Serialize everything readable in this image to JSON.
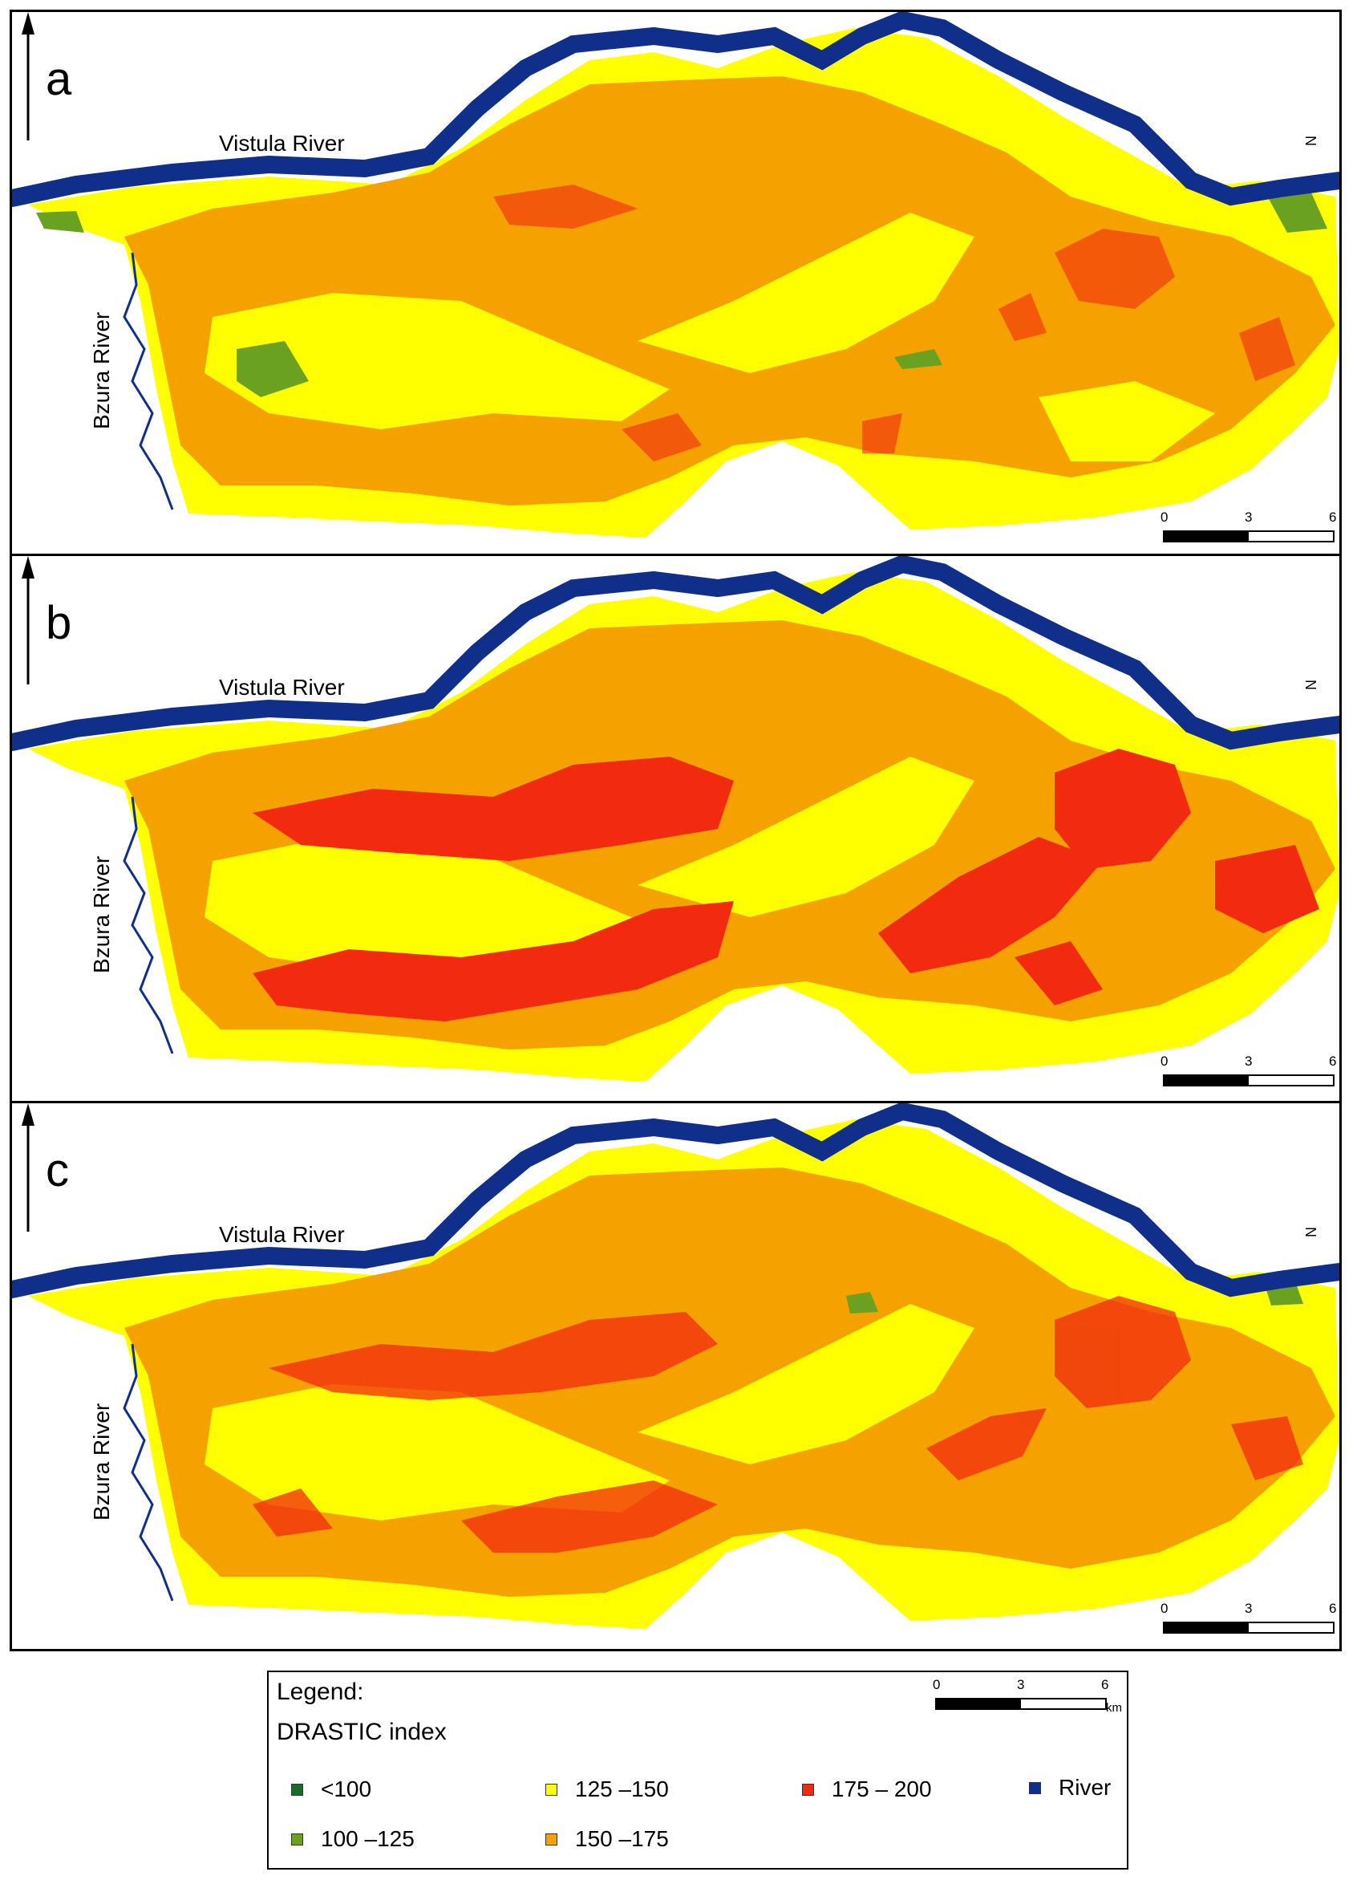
{
  "panels": [
    {
      "letter": "a",
      "vistula_label": "Vistula River",
      "bzura_label": "Bzura River",
      "north_label": "N",
      "scale": {
        "ticks": [
          "0",
          "3",
          "6"
        ],
        "unit": "km"
      }
    },
    {
      "letter": "b",
      "vistula_label": "Vistula River",
      "bzura_label": "Bzura River",
      "north_label": "N",
      "scale": {
        "ticks": [
          "0",
          "3",
          "6"
        ],
        "unit": "km"
      }
    },
    {
      "letter": "c",
      "vistula_label": "Vistula River",
      "bzura_label": "Bzura River",
      "north_label": "N",
      "scale": {
        "ticks": [
          "0",
          "3",
          "6"
        ],
        "unit": "km"
      }
    }
  ],
  "legend": {
    "title": "Legend:",
    "subtitle": "DRASTIC index",
    "scale": {
      "ticks": [
        "0",
        "3",
        "6"
      ],
      "unit": "km"
    },
    "items": [
      {
        "label": "<100",
        "color": "#1a6b2a"
      },
      {
        "label": "100 –125",
        "color": "#6aa121"
      },
      {
        "label": "125 –150",
        "color": "#ffff00"
      },
      {
        "label": "150 –175",
        "color": "#f5a100"
      },
      {
        "label": "175 – 200",
        "color": "#f22a10"
      },
      {
        "label": "River",
        "color": "#0f2f8a"
      }
    ]
  },
  "colors": {
    "river": "#0f2f8a",
    "yellow": "#ffff00",
    "orange": "#f5a100",
    "red": "#f22a10",
    "green": "#6aa121",
    "dark_green": "#1a6b2a"
  },
  "red_extent": {
    "a": 0.35,
    "b": 1.0,
    "c": 0.75
  }
}
